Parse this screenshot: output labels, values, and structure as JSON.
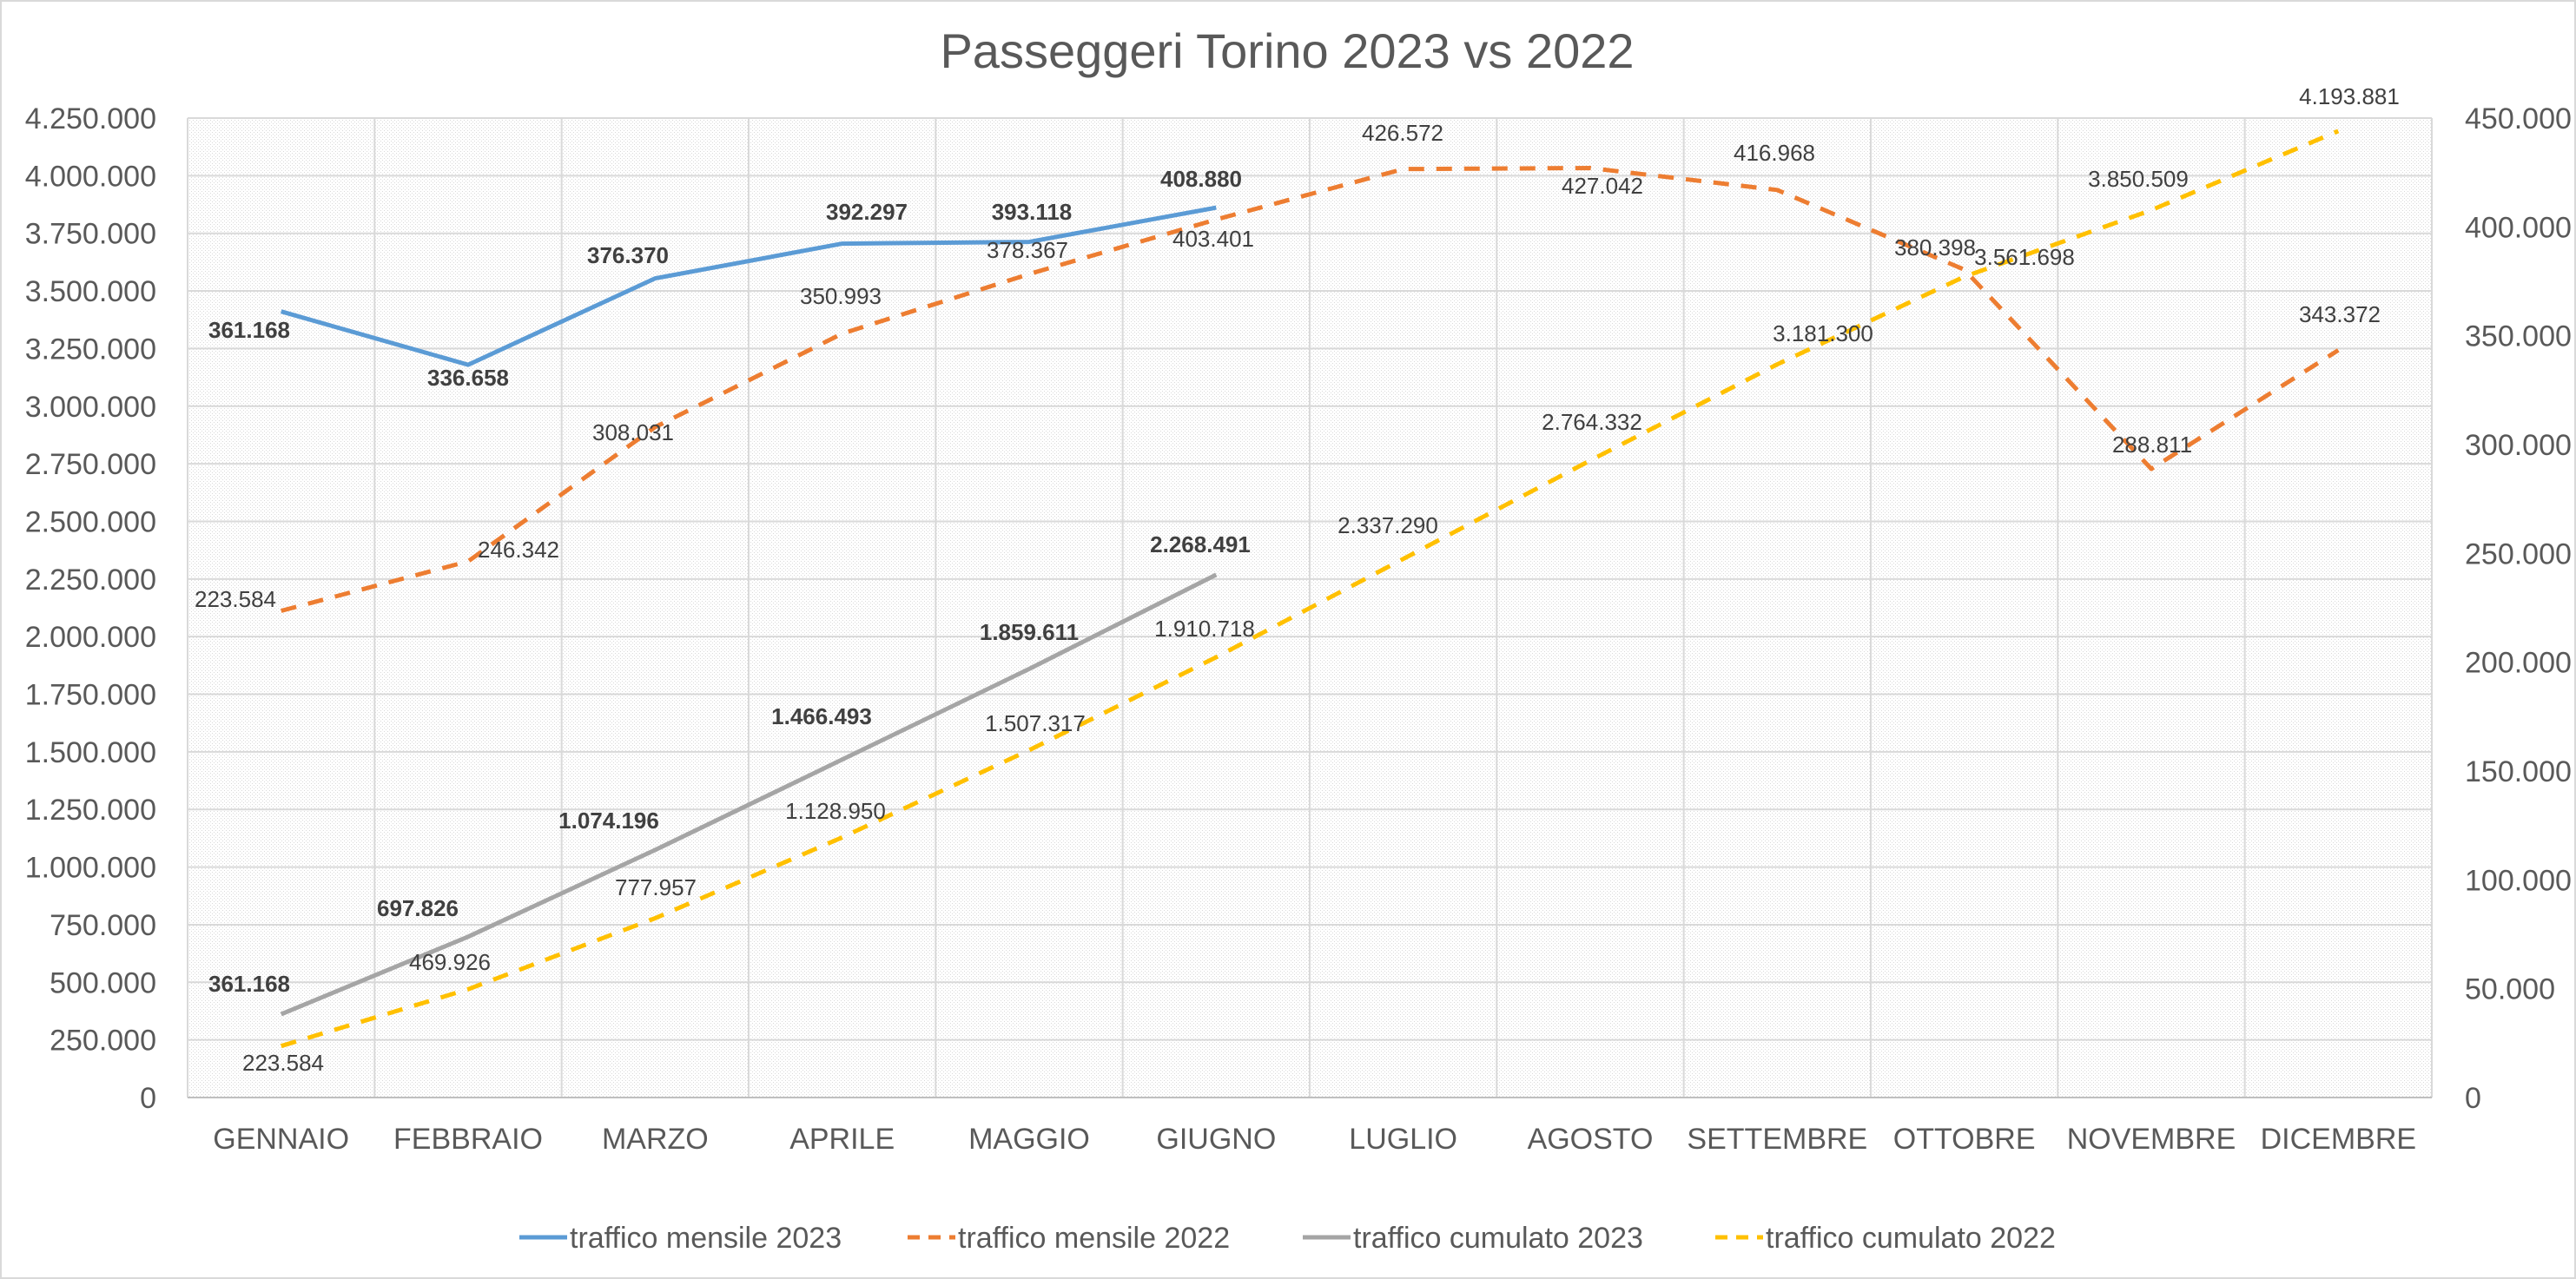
{
  "chart_data": {
    "type": "line",
    "title": "Passeggeri Torino 2023 vs 2022",
    "categories": [
      "GENNAIO",
      "FEBBRAIO",
      "MARZO",
      "APRILE",
      "MAGGIO",
      "GIUGNO",
      "LUGLIO",
      "AGOSTO",
      "SETTEMBRE",
      "OTTOBRE",
      "NOVEMBRE",
      "DICEMBRE"
    ],
    "y_left": {
      "min": 0,
      "max": 4250000,
      "ticks": [
        0,
        250000,
        500000,
        750000,
        1000000,
        1250000,
        1500000,
        1750000,
        2000000,
        2250000,
        2500000,
        2750000,
        3000000,
        3250000,
        3500000,
        3750000,
        4000000,
        4250000
      ],
      "tick_labels": [
        "0",
        "250.000",
        "500.000",
        "750.000",
        "1.000.000",
        "1.250.000",
        "1.500.000",
        "1.750.000",
        "2.000.000",
        "2.250.000",
        "2.500.000",
        "2.750.000",
        "3.000.000",
        "3.250.000",
        "3.500.000",
        "3.750.000",
        "4.000.000",
        "4.250.000"
      ]
    },
    "y_right": {
      "min": 0,
      "max": 450000,
      "ticks": [
        0,
        50000,
        100000,
        150000,
        200000,
        250000,
        300000,
        350000,
        400000,
        450000
      ],
      "tick_labels": [
        "0",
        "50.000",
        "100.000",
        "150.000",
        "200.000",
        "250.000",
        "300.000",
        "350.000",
        "400.000",
        "450.000"
      ]
    },
    "grid": true,
    "legend_position": "bottom",
    "series": [
      {
        "name": "traffico mensile 2023",
        "axis": "right",
        "color": "#5b9bd5",
        "style": "solid",
        "values": [
          361168,
          336658,
          376370,
          392297,
          393118,
          408880,
          null,
          null,
          null,
          null,
          null,
          null
        ],
        "labels": [
          "361.168",
          "336.658",
          "376.370",
          "392.297",
          "393.118",
          "408.880"
        ],
        "label_bold": true
      },
      {
        "name": "traffico mensile 2022",
        "axis": "right",
        "color": "#ed7d31",
        "style": "dashed",
        "values": [
          223584,
          246342,
          308031,
          350993,
          378367,
          403401,
          426572,
          427042,
          416968,
          380398,
          288811,
          343372
        ],
        "labels": [
          "223.584",
          "246.342",
          "308.031",
          "350.993",
          "378.367",
          "403.401",
          "426.572",
          "427.042",
          "416.968",
          "380.398",
          "288.811",
          "343.372"
        ],
        "label_bold": false
      },
      {
        "name": "traffico cumulato 2023",
        "axis": "left",
        "color": "#a5a5a5",
        "style": "solid",
        "values": [
          361168,
          697826,
          1074196,
          1466493,
          1859611,
          2268491,
          null,
          null,
          null,
          null,
          null,
          null
        ],
        "labels": [
          "361.168",
          "697.826",
          "1.074.196",
          "1.466.493",
          "1.859.611",
          "2.268.491"
        ],
        "label_bold": true
      },
      {
        "name": "traffico cumulato 2022",
        "axis": "left",
        "color": "#ffc000",
        "style": "dashed",
        "values": [
          223584,
          469926,
          777957,
          1128950,
          1507317,
          1910718,
          2337290,
          2764332,
          3181300,
          3561698,
          3850509,
          4193881
        ],
        "labels": [
          "223.584",
          "469.926",
          "777.957",
          "1.128.950",
          "1.507.317",
          "1.910.718",
          "2.337.290",
          "2.764.332",
          "3.181.300",
          "3.561.698",
          "3.850.509",
          "4.193.881"
        ],
        "label_bold": false
      }
    ]
  }
}
